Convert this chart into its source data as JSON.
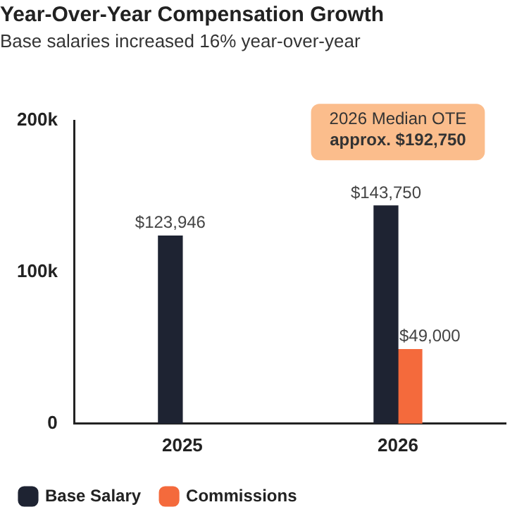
{
  "chart_data": {
    "type": "bar",
    "title": "Year-Over-Year Compensation Growth",
    "subtitle": "Base salaries increased 16% year-over-year",
    "categories": [
      "2025",
      "2026"
    ],
    "series": [
      {
        "name": "Base Salary",
        "color": "#1e2332",
        "values": [
          123946,
          143750
        ],
        "value_labels": [
          "$123,946",
          "$143,750"
        ]
      },
      {
        "name": "Commissions",
        "color": "#f46a3c",
        "values": [
          null,
          49000
        ],
        "value_labels": [
          null,
          "$49,000"
        ]
      }
    ],
    "ylim": [
      0,
      200000
    ],
    "yticks": [
      {
        "value": 0,
        "label": "0"
      },
      {
        "value": 100000,
        "label": "100k"
      },
      {
        "value": 200000,
        "label": "200k"
      }
    ],
    "legend": "bottom left",
    "annotations": [
      "2026 Median OTE\napprox. $192,750"
    ]
  }
}
